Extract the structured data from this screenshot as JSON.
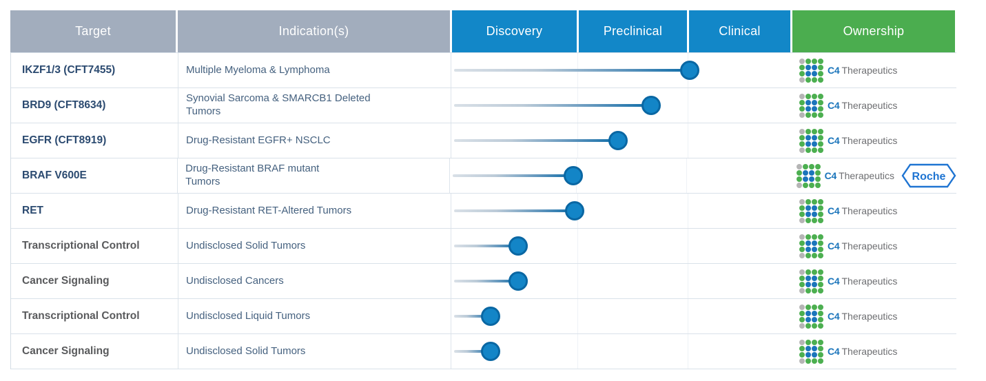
{
  "header": {
    "columns": [
      {
        "label": "Target",
        "fill": "#a2adbd"
      },
      {
        "label": "Indication(s)",
        "fill": "#a2adbd"
      },
      {
        "label": "Discovery",
        "fill": "#1287c8"
      },
      {
        "label": "Preclinical",
        "fill": "#1287c8"
      },
      {
        "label": "Clinical",
        "fill": "#1287c8"
      },
      {
        "label": "Ownership",
        "fill": "#4bad4f"
      }
    ]
  },
  "logos": {
    "c4": {
      "name": "C4 Therapeutics",
      "c4_label": "C4",
      "therapeutics_label": "Therapeutics"
    },
    "roche": {
      "name": "Roche",
      "label": "Roche"
    }
  },
  "icons": {
    "c4_logo": "dot-grid-logo",
    "roche_logo": "hexagon-outline-logo"
  },
  "colors": {
    "header_gray": "#a2adbd",
    "phase_blue": "#1287c8",
    "ownership_green": "#4bad4f",
    "target_navy": "#2b4a70",
    "target_gray": "#595a5c",
    "indication_blue": "#45617f",
    "marker_fill": "#1385c7",
    "marker_ring": "#0a67a3",
    "c4_dot_green": "#4caf50",
    "c4_dot_blue": "#1b75bb",
    "c4_dot_gray": "#b5b5b5",
    "c4_text_blue": "#1b75bb",
    "c4_text_gray": "#6d6e71",
    "roche_blue": "#1e74d2"
  },
  "chart_data": {
    "type": "gantt",
    "title": "Therapeutic pipeline by development phase",
    "phases": [
      "Discovery",
      "Preclinical",
      "Clinical"
    ],
    "progress_scale": "progress_units: 0 = start of Discovery, 1 = Discovery/Preclinical boundary, 2 = Preclinical/Clinical boundary, 3 = end of Clinical",
    "programs": [
      {
        "target": "IKZF1/3 (CFT7455)",
        "target_color": "navy",
        "indication": "Multiple Myeloma & Lymphoma",
        "stage": "Clinical (early)",
        "progress_units": 2.02,
        "owners": [
          "C4 Therapeutics"
        ]
      },
      {
        "target": "BRD9 (CFT8634)",
        "target_color": "navy",
        "indication": "Synovial Sarcoma & SMARCB1 Deleted\nTumors",
        "stage": "Preclinical (late)",
        "progress_units": 1.67,
        "owners": [
          "C4 Therapeutics"
        ]
      },
      {
        "target": "EGFR (CFT8919)",
        "target_color": "navy",
        "indication": "Drug-Resistant EGFR+ NSCLC",
        "stage": "Preclinical (mid)",
        "progress_units": 1.37,
        "owners": [
          "C4 Therapeutics"
        ]
      },
      {
        "target": "BRAF V600E",
        "target_color": "navy",
        "indication": "Drug-Resistant BRAF mutant\nTumors",
        "stage": "Discovery (late)",
        "progress_units": 0.98,
        "owners": [
          "C4 Therapeutics",
          "Roche"
        ]
      },
      {
        "target": "RET",
        "target_color": "navy",
        "indication": "Drug-Resistant RET-Altered Tumors",
        "stage": "Discovery (late)",
        "progress_units": 0.98,
        "owners": [
          "C4 Therapeutics"
        ]
      },
      {
        "target": "Transcriptional Control",
        "target_color": "gray",
        "indication": "Undisclosed Solid Tumors",
        "stage": "Discovery (mid)",
        "progress_units": 0.53,
        "owners": [
          "C4 Therapeutics"
        ]
      },
      {
        "target": "Cancer Signaling",
        "target_color": "gray",
        "indication": "Undisclosed Cancers",
        "stage": "Discovery (mid)",
        "progress_units": 0.53,
        "owners": [
          "C4 Therapeutics"
        ]
      },
      {
        "target": "Transcriptional Control",
        "target_color": "gray",
        "indication": "Undisclosed Liquid Tumors",
        "stage": "Discovery (early)",
        "progress_units": 0.31,
        "owners": [
          "C4 Therapeutics"
        ]
      },
      {
        "target": "Cancer Signaling",
        "target_color": "gray",
        "indication": "Undisclosed Solid Tumors",
        "stage": "Discovery (early)",
        "progress_units": 0.31,
        "owners": [
          "C4 Therapeutics"
        ]
      }
    ]
  }
}
